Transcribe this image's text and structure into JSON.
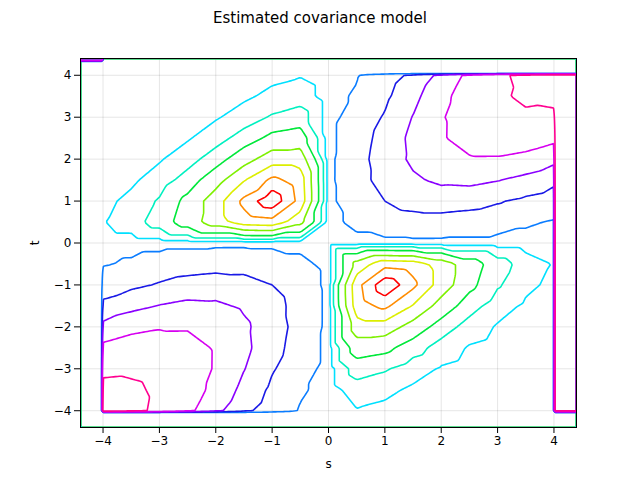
{
  "chart_data": {
    "type": "contour",
    "title": "Estimated covariance model",
    "x_label": "s",
    "y_label": "t",
    "xlim": [
      -4.4,
      4.4
    ],
    "ylim": [
      -4.4,
      4.4
    ],
    "xticks": [
      -4,
      -3,
      -2,
      -1,
      0,
      1,
      2,
      3,
      4
    ],
    "yticks": [
      -4,
      -3,
      -2,
      -1,
      0,
      1,
      2,
      3,
      4
    ],
    "grid": true,
    "x": [
      -4,
      -3.5,
      -3,
      -2.5,
      -2,
      -1.5,
      -1,
      -0.5,
      0,
      0.5,
      1,
      1.5,
      2,
      2.5,
      3,
      3.5,
      4
    ],
    "y": [
      -4,
      -3.5,
      -3,
      -2.5,
      -2,
      -1.5,
      -1,
      -0.5,
      0,
      0.5,
      1,
      1.5,
      2,
      2.5,
      3,
      3.5,
      4
    ],
    "values": [
      [
        16,
        13.146,
        9.348,
        5.7,
        2.944,
        1.26,
        0.42,
        0.094,
        0,
        -0.013,
        -0.008,
        -0.003,
        -0.001,
        0,
        0,
        0,
        0
      ],
      [
        13.146,
        12.25,
        9.86,
        6.816,
        3.99,
        1.932,
        0.735,
        0.184,
        0,
        -0.032,
        -0.022,
        -0.01,
        -0.004,
        -0.001,
        0,
        0,
        0
      ],
      [
        9.348,
        9.86,
        9,
        7.043,
        4.674,
        2.565,
        1.104,
        0.315,
        0,
        -0.07,
        -0.055,
        -0.028,
        -0.012,
        -0.004,
        -0.001,
        0,
        0
      ],
      [
        5.7,
        6.816,
        7.043,
        6.25,
        4.695,
        2.921,
        1.425,
        0.46,
        0,
        -0.131,
        -0.117,
        -0.069,
        -0.032,
        -0.012,
        -0.004,
        -0.001,
        0
      ],
      [
        2.944,
        3.99,
        4.674,
        4.695,
        4,
        2.817,
        1.558,
        0.57,
        0,
        -0.21,
        -0.21,
        -0.14,
        -0.073,
        -0.032,
        -0.012,
        -0.004,
        -0.001
      ],
      [
        1.26,
        1.932,
        2.565,
        2.921,
        2.817,
        2.25,
        1.409,
        0.584,
        0,
        -0.276,
        -0.315,
        -0.236,
        -0.14,
        -0.069,
        -0.028,
        -0.01,
        -0.003
      ],
      [
        0.42,
        0.735,
        1.104,
        1.425,
        1.558,
        1.409,
        1,
        0.47,
        0,
        -0.285,
        -0.368,
        -0.315,
        -0.21,
        -0.117,
        -0.055,
        -0.022,
        -0.008
      ],
      [
        0.094,
        0.184,
        0.315,
        0.46,
        0.57,
        0.584,
        0.47,
        0.25,
        0,
        -0.195,
        -0.285,
        -0.276,
        -0.21,
        -0.131,
        -0.07,
        -0.032,
        -0.013
      ],
      [
        0,
        0,
        0,
        0,
        0,
        0,
        0,
        0,
        0,
        0,
        0,
        0,
        0,
        0,
        0,
        0,
        0
      ],
      [
        -0.013,
        -0.032,
        -0.07,
        -0.131,
        -0.21,
        -0.276,
        -0.285,
        -0.195,
        0,
        0.25,
        0.47,
        0.584,
        0.57,
        0.46,
        0.315,
        0.184,
        0.094
      ],
      [
        -0.008,
        -0.022,
        -0.055,
        -0.117,
        -0.21,
        -0.315,
        -0.368,
        -0.285,
        0,
        0.47,
        1,
        1.409,
        1.558,
        1.425,
        1.104,
        0.735,
        0.42
      ],
      [
        -0.003,
        -0.01,
        -0.028,
        -0.069,
        -0.14,
        -0.236,
        -0.315,
        -0.276,
        0,
        0.584,
        1.409,
        2.25,
        2.817,
        2.921,
        2.565,
        1.932,
        1.26
      ],
      [
        -0.001,
        -0.004,
        -0.012,
        -0.032,
        -0.073,
        -0.14,
        -0.21,
        -0.21,
        0,
        0.57,
        1.558,
        2.817,
        4,
        4.695,
        4.674,
        3.99,
        2.944
      ],
      [
        0,
        -0.001,
        -0.004,
        -0.012,
        -0.032,
        -0.069,
        -0.117,
        -0.131,
        0,
        0.46,
        1.425,
        2.921,
        4.695,
        6.25,
        7.043,
        6.816,
        5.7
      ],
      [
        0,
        0,
        -0.001,
        -0.004,
        -0.012,
        -0.028,
        -0.055,
        -0.07,
        0,
        0.315,
        1.104,
        2.565,
        4.674,
        7.043,
        9,
        9.86,
        9.348
      ],
      [
        0,
        0,
        0,
        -0.001,
        -0.004,
        -0.01,
        -0.022,
        -0.032,
        0,
        0.184,
        0.735,
        1.932,
        3.99,
        6.816,
        9.86,
        12.25,
        13.146
      ],
      [
        0,
        0,
        0,
        0,
        -0.001,
        -0.003,
        -0.008,
        -0.013,
        0,
        0.094,
        0.42,
        1.26,
        2.944,
        5.7,
        9.348,
        13.146,
        16
      ]
    ],
    "levels": [
      -0.34,
      -0.3,
      -0.24,
      -0.17,
      -0.1,
      -0.05,
      -0.015,
      0.13,
      1,
      2.5,
      5,
      11
    ],
    "colors": [
      "#ff0000",
      "#ff8c00",
      "#dcee00",
      "#7ef000",
      "#00e83a",
      "#00f0c0",
      "#00e0ff",
      "#0a7cff",
      "#1a1ae6",
      "#8a00ff",
      "#d600f0",
      "#ff0090"
    ]
  }
}
